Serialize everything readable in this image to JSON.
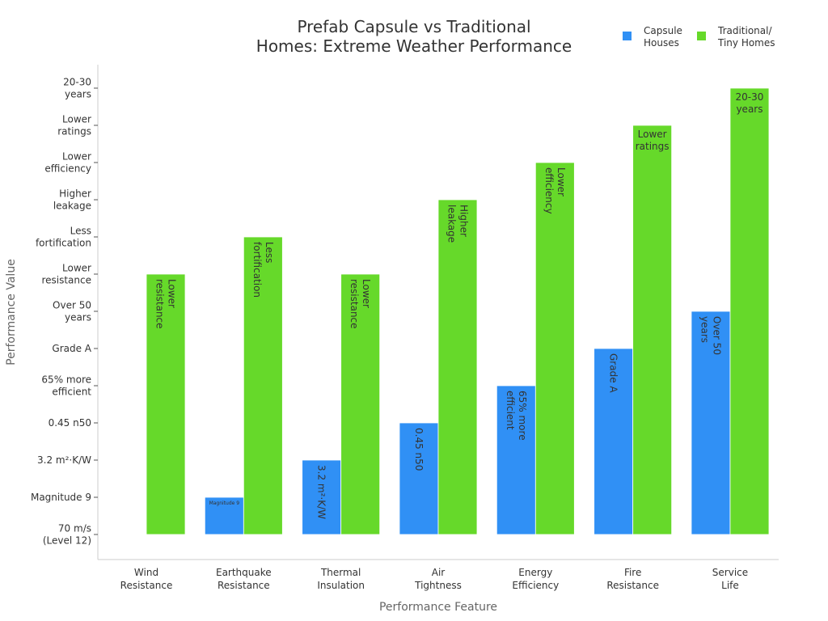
{
  "chart_data": {
    "type": "bar",
    "title": "Prefab Capsule vs Traditional\nHomes: Extreme Weather Performance",
    "xlabel": "Performance Feature",
    "ylabel": "Performance Value",
    "categories": [
      "Wind\nResistance",
      "Earthquake\nResistance",
      "Thermal\nInsulation",
      "Air\nTightness",
      "Energy\nEfficiency",
      "Fire\nResistance",
      "Service\nLife"
    ],
    "y_ticks": [
      "70 m/s\n(Level 12)",
      "Magnitude 9",
      "3.2 m²·K/W",
      "0.45 n50",
      "65% more\nefficient",
      "Grade A",
      "Over 50\nyears",
      "Lower\nresistance",
      "Less\nfortification",
      "Higher\nleakage",
      "Lower\nefficiency",
      "Lower\nratings",
      "20-30\nyears"
    ],
    "ylim": [
      -0.65,
      12.65
    ],
    "grid": false,
    "legend_position": "top-right",
    "series": [
      {
        "name": "Capsule Houses",
        "legend_label": "Capsule\nHouses",
        "color": "#3090f5",
        "values": [
          0,
          1,
          2,
          3,
          4,
          5,
          6
        ],
        "labels": [
          "",
          "Magnitude 9",
          "3.2 m²·K/W",
          "0.45 n50",
          "65% more\nefficient",
          "Grade A",
          "Over 50\nyears"
        ],
        "label_orientation": [
          "none",
          "horizontal-small",
          "vertical",
          "vertical",
          "vertical",
          "vertical",
          "vertical"
        ]
      },
      {
        "name": "Traditional/ Tiny Homes",
        "legend_label": "Traditional/\nTiny Homes",
        "color": "#66d92a",
        "values": [
          7,
          8,
          7,
          9,
          10,
          11,
          12
        ],
        "labels": [
          "Lower\nresistance",
          "Less\nfortification",
          "Lower\nresistance",
          "Higher\nleakage",
          "Lower\nefficiency",
          "Lower\nratings",
          "20-30\nyears"
        ],
        "label_orientation": [
          "vertical",
          "vertical",
          "vertical",
          "vertical",
          "vertical",
          "horizontal",
          "horizontal"
        ]
      }
    ]
  }
}
